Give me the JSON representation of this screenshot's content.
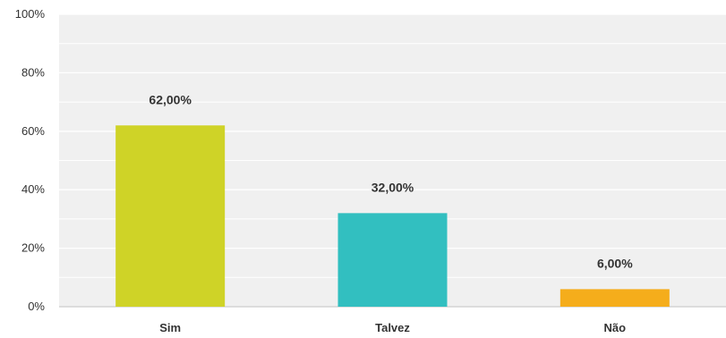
{
  "chart_data": {
    "type": "bar",
    "title": "",
    "xlabel": "",
    "ylabel": "",
    "categories": [
      "Sim",
      "Talvez",
      "Não"
    ],
    "values": [
      62,
      32,
      6
    ],
    "data_labels": [
      "62,00%",
      "32,00%",
      "6,00%"
    ],
    "colors": [
      "#cfd327",
      "#32bfc0",
      "#f5ad1b"
    ],
    "ylim": [
      0,
      100
    ],
    "yticks": [
      0,
      20,
      40,
      60,
      80,
      100
    ],
    "ytick_labels": [
      "0%",
      "20%",
      "40%",
      "60%",
      "80%",
      "100%"
    ],
    "grid": true,
    "legend": false,
    "plot_background": "#f0f0f0"
  }
}
